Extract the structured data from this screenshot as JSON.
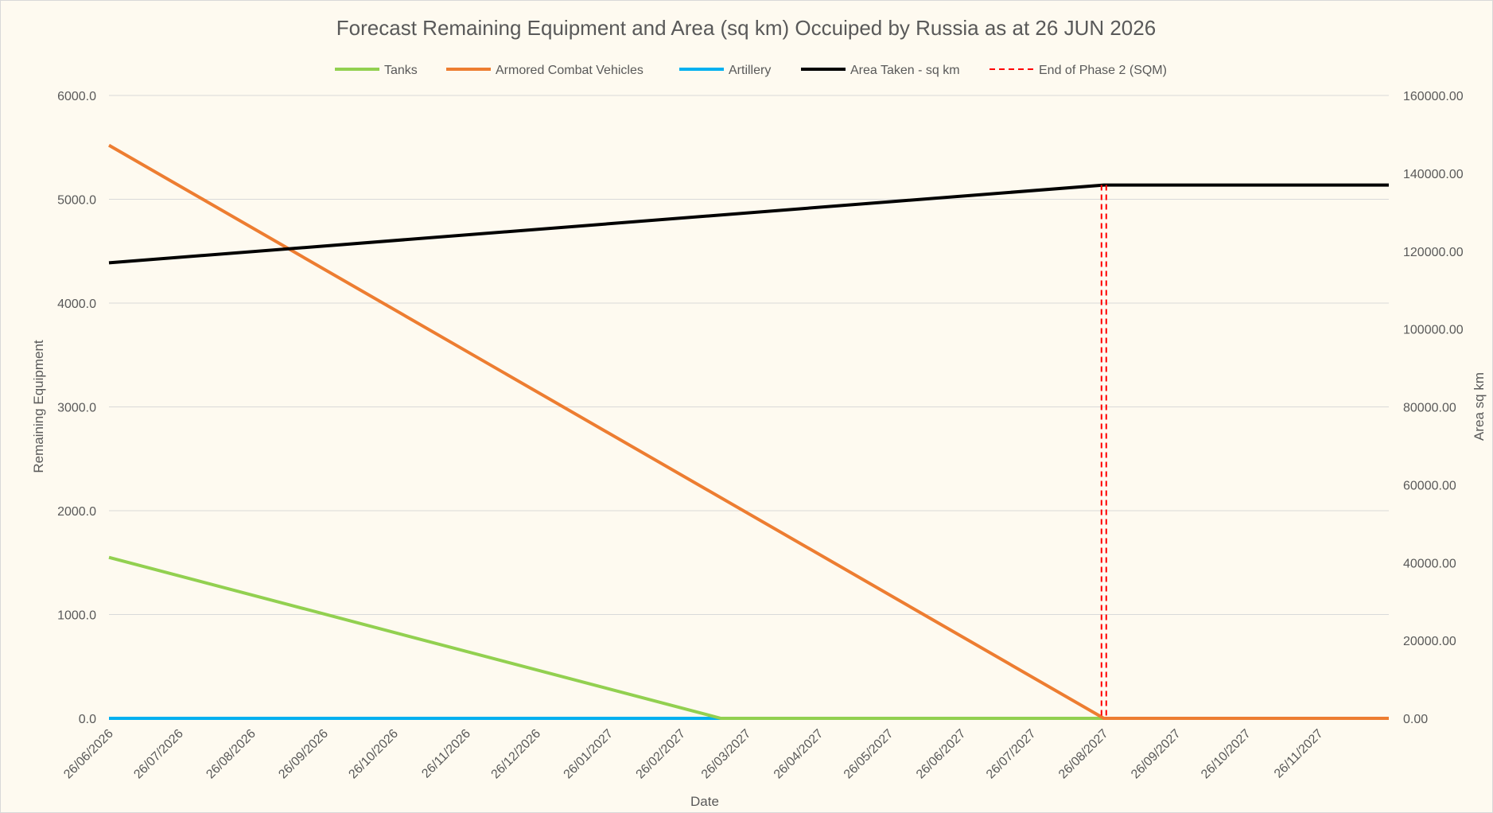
{
  "chart_data": {
    "type": "line",
    "title": "Forecast Remaining Equipment and Area (sq km) Occuiped by Russia as at 26 JUN 2026",
    "xlabel": "Date",
    "ylabel": "Remaining Equipment",
    "y2label": "Area sq km",
    "ylim": [
      0,
      6000
    ],
    "y2lim": [
      0,
      160000
    ],
    "yticks": [
      "0.0",
      "1000.0",
      "2000.0",
      "3000.0",
      "4000.0",
      "5000.0",
      "6000.0"
    ],
    "y2ticks": [
      "0.00",
      "20000.00",
      "40000.00",
      "60000.00",
      "80000.00",
      "100000.00",
      "120000.00",
      "140000.00",
      "160000.00"
    ],
    "xlim": [
      "26/06/2026",
      "26/12/2027"
    ],
    "xticks": [
      "26/06/2026",
      "26/07/2026",
      "26/08/2026",
      "26/09/2026",
      "26/10/2026",
      "26/11/2026",
      "26/12/2026",
      "26/01/2027",
      "26/02/2027",
      "26/03/2027",
      "26/04/2027",
      "26/05/2027",
      "26/06/2027",
      "26/07/2027",
      "26/08/2027",
      "26/09/2027",
      "26/10/2027",
      "26/11/2027"
    ],
    "grid": true,
    "legend_position": "top",
    "series": [
      {
        "name": "Tanks",
        "color": "#92d050",
        "axis": "left",
        "style": "solid",
        "x": [
          "26/06/2026",
          "15/03/2027",
          "26/12/2027"
        ],
        "values": [
          1550,
          0,
          0
        ]
      },
      {
        "name": "Armored Combat Vehicles",
        "color": "#ed7d31",
        "axis": "left",
        "style": "solid",
        "x": [
          "26/06/2026",
          "26/08/2027",
          "26/12/2027"
        ],
        "values": [
          5520,
          0,
          0
        ]
      },
      {
        "name": "Artillery",
        "color": "#00b0f0",
        "axis": "left",
        "style": "solid",
        "x": [
          "26/06/2026",
          "26/12/2027"
        ],
        "values": [
          0,
          0
        ]
      },
      {
        "name": "Area Taken - sq km",
        "color": "#000000",
        "axis": "right",
        "style": "solid",
        "x": [
          "26/06/2026",
          "26/08/2027",
          "26/12/2027"
        ],
        "values": [
          117000,
          137000,
          137000
        ]
      },
      {
        "name": "End of Phase 2 (SQM)",
        "color": "#ff0000",
        "axis": "right",
        "style": "dashed",
        "x": [
          "26/08/2027",
          "26/08/2027"
        ],
        "values": [
          137000,
          0
        ]
      }
    ]
  }
}
